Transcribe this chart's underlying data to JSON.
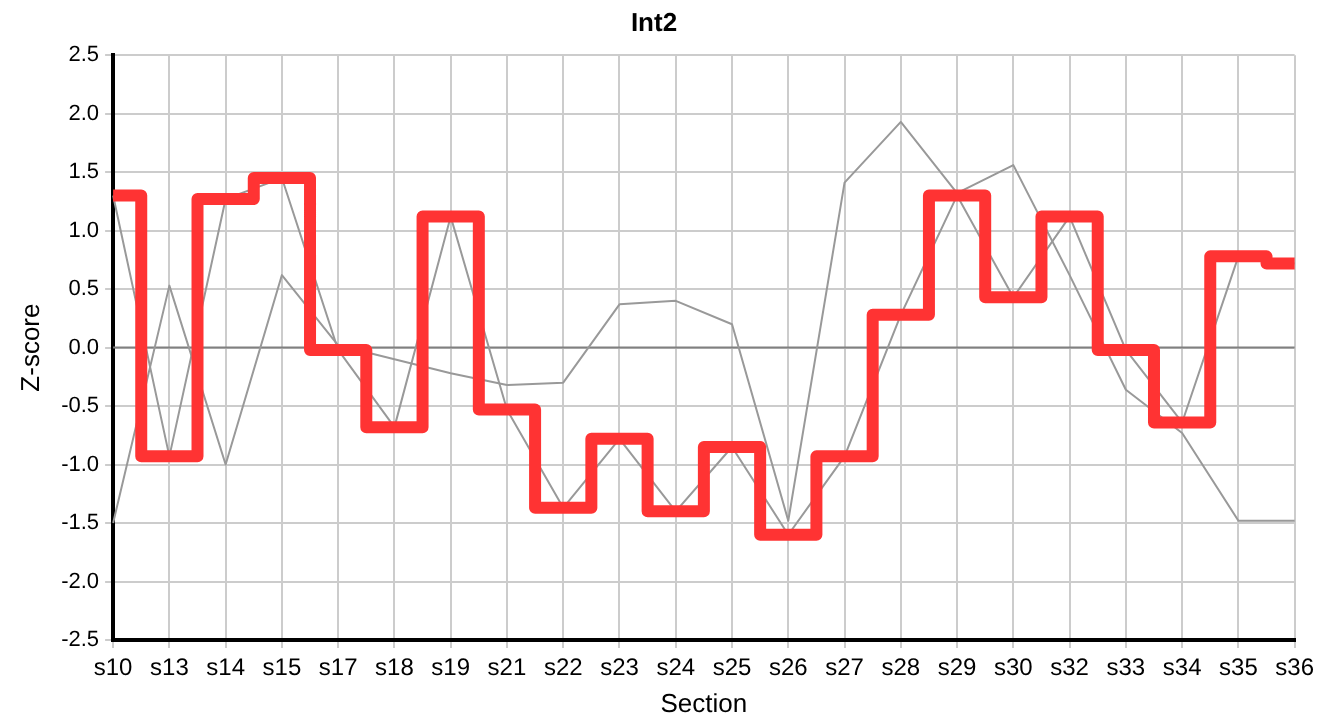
{
  "chart_data": {
    "type": "line",
    "title": "Int2",
    "xlabel": "Section",
    "ylabel": "Z-score",
    "categories": [
      "s10",
      "s13",
      "s14",
      "s15",
      "s17",
      "s18",
      "s19",
      "s21",
      "s22",
      "s23",
      "s24",
      "s25",
      "s26",
      "s27",
      "s28",
      "s29",
      "s30",
      "s32",
      "s33",
      "s34",
      "s35",
      "s36"
    ],
    "series": [
      {
        "color": "#999999",
        "values": [
          -1.5,
          0.53,
          -1.0,
          0.62,
          0.02,
          -0.1,
          -0.22,
          -0.32,
          -0.3,
          0.37,
          0.4,
          0.2,
          -1.48,
          1.41,
          1.93,
          1.32,
          1.56,
          0.62,
          -0.36,
          -0.73,
          -1.48,
          -1.48
        ]
      },
      {
        "color": "#999999",
        "values": [
          1.3,
          -0.93,
          1.27,
          1.45,
          -0.02,
          -0.68,
          1.12,
          -0.53,
          -1.37,
          -0.78,
          -1.4,
          -0.85,
          -1.6,
          -0.93,
          0.28,
          1.3,
          0.43,
          1.12,
          -0.02,
          -0.64,
          0.78,
          0.72
        ]
      },
      {
        "type": "step",
        "color": "#ff3333",
        "values": [
          1.3,
          -0.93,
          1.27,
          1.45,
          -0.02,
          -0.68,
          1.12,
          -0.53,
          -1.37,
          -0.78,
          -1.4,
          -0.85,
          -1.6,
          -0.93,
          0.28,
          1.3,
          0.43,
          1.12,
          -0.02,
          -0.64,
          0.78,
          0.72
        ]
      }
    ],
    "ylim": [
      -2.5,
      2.5
    ],
    "yticks": [
      {
        "value": -2.5,
        "label": "-2.5"
      },
      {
        "value": -2,
        "label": "-2.0"
      },
      {
        "value": -1.5,
        "label": "-1.5"
      },
      {
        "value": -1,
        "label": "-1.0"
      },
      {
        "value": -0.5,
        "label": "-0.5"
      },
      {
        "value": 0,
        "label": "0.0"
      },
      {
        "value": 0.5,
        "label": "0.5"
      },
      {
        "value": 1,
        "label": "1.0"
      },
      {
        "value": 1.5,
        "label": "1.5"
      },
      {
        "value": 2,
        "label": "2.0"
      },
      {
        "value": 2.5,
        "label": "2.5"
      }
    ],
    "ref_lines": [
      {
        "axis": "y",
        "value": 0,
        "color": "#808080"
      }
    ],
    "grid": true,
    "legend": false,
    "marker": "none",
    "line_style": "solid"
  }
}
